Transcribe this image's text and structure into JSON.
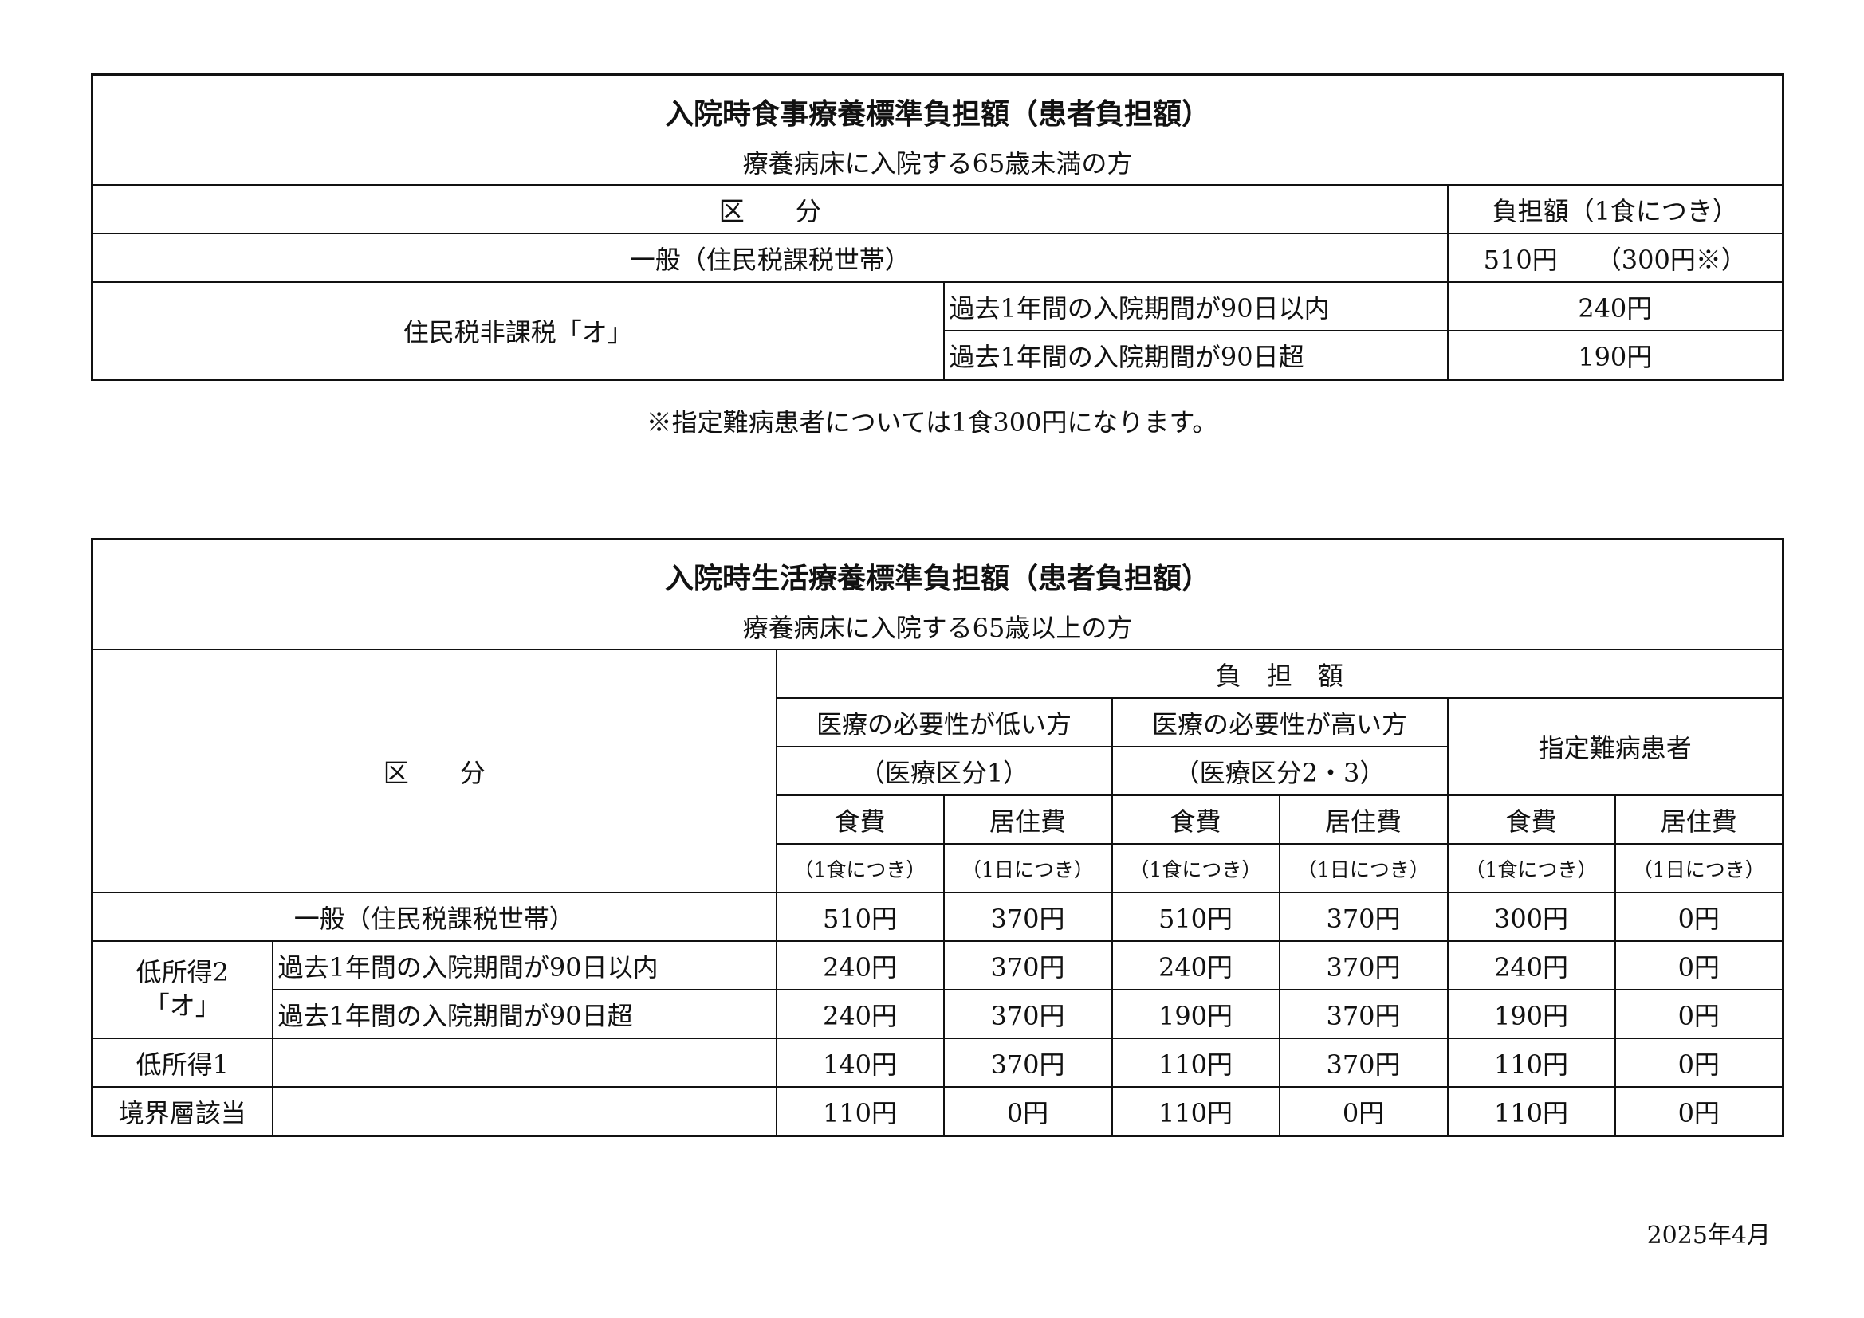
{
  "table1": {
    "title": "入院時食事療養標準負担額（患者負担額）",
    "subtitle": "療養病床に入院する65歳未満の方",
    "header_category": "区　　分",
    "header_amount": "負担額（1食につき）",
    "rows": [
      {
        "category": "一般（住民税課税世帯）",
        "amount": "510円　　（300円※）"
      },
      {
        "category": "住民税非課税「オ」",
        "condition": "過去1年間の入院期間が90日以内",
        "amount": "240円"
      },
      {
        "condition": "過去1年間の入院期間が90日超",
        "amount": "190円"
      }
    ],
    "note": "※指定難病患者については1食300円になります。"
  },
  "table2": {
    "title": "入院時生活療養標準負担額（患者負担額）",
    "subtitle": "療養病床に入院する65歳以上の方",
    "header_category": "区　　分",
    "header_amount": "負　担　額",
    "groups": [
      {
        "label": "医療の必要性が低い方",
        "sub": "（医療区分1）"
      },
      {
        "label": "医療の必要性が高い方",
        "sub": "（医療区分2・3）"
      },
      {
        "label": "指定難病患者"
      }
    ],
    "food": "食費",
    "housing": "居住費",
    "per_meal": "（1食につき）",
    "per_day": "（1日につき）",
    "rows": [
      {
        "category": "一般（住民税課税世帯）",
        "values": [
          "510円",
          "370円",
          "510円",
          "370円",
          "300円",
          "0円"
        ]
      },
      {
        "category": "低所得2",
        "category2": "「オ」",
        "condition": "過去1年間の入院期間が90日以内",
        "values": [
          "240円",
          "370円",
          "240円",
          "370円",
          "240円",
          "0円"
        ]
      },
      {
        "condition": "過去1年間の入院期間が90日超",
        "values": [
          "240円",
          "370円",
          "190円",
          "370円",
          "190円",
          "0円"
        ]
      },
      {
        "category": "低所得1",
        "condition": "",
        "values": [
          "140円",
          "370円",
          "110円",
          "370円",
          "110円",
          "0円"
        ]
      },
      {
        "category": "境界層該当",
        "condition": "",
        "values": [
          "110円",
          "0円",
          "110円",
          "0円",
          "110円",
          "0円"
        ]
      }
    ]
  },
  "date": "2025年4月"
}
